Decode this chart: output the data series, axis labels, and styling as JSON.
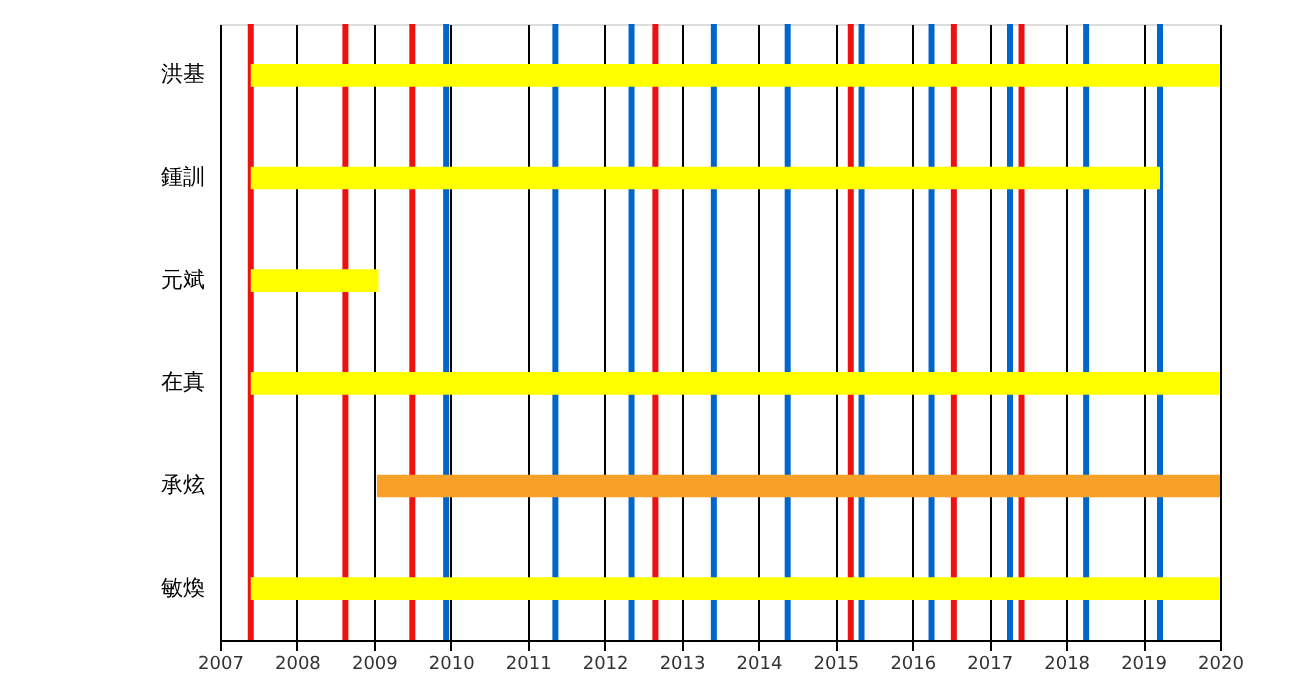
{
  "chart_data": {
    "type": "bar",
    "orientation": "horizontal",
    "categories": [
      "洪基",
      "鍾訓",
      "元斌",
      "在真",
      "承炫",
      "敏煥"
    ],
    "base": [
      2007.4,
      2007.4,
      2007.4,
      2007.4,
      2009.04,
      2007.4
    ],
    "values": [
      12.6,
      11.82,
      1.66,
      12.6,
      10.96,
      12.6
    ],
    "colors": [
      "#ffff00",
      "#ffff00",
      "#ffff00",
      "#ffff00",
      "#f7a128",
      "#ffff00"
    ],
    "xlim": [
      2007,
      2020
    ],
    "xticks": [
      2007,
      2008,
      2009,
      2010,
      2011,
      2012,
      2013,
      2014,
      2015,
      2016,
      2017,
      2018,
      2019,
      2020
    ],
    "grid": "x",
    "legend": false,
    "ref_lines": [
      {
        "axis": "x",
        "value": 2007.4,
        "color": "#ee1111"
      },
      {
        "axis": "x",
        "value": 2008.63,
        "color": "#ee1111"
      },
      {
        "axis": "x",
        "value": 2009.5,
        "color": "#ee1111"
      },
      {
        "axis": "x",
        "value": 2009.94,
        "color": "#0066cc"
      },
      {
        "axis": "x",
        "value": 2011.36,
        "color": "#0066cc"
      },
      {
        "axis": "x",
        "value": 2012.35,
        "color": "#0066cc"
      },
      {
        "axis": "x",
        "value": 2012.66,
        "color": "#ee1111"
      },
      {
        "axis": "x",
        "value": 2013.42,
        "color": "#0066cc"
      },
      {
        "axis": "x",
        "value": 2014.38,
        "color": "#0066cc"
      },
      {
        "axis": "x",
        "value": 2015.2,
        "color": "#ee1111"
      },
      {
        "axis": "x",
        "value": 2015.34,
        "color": "#0066cc"
      },
      {
        "axis": "x",
        "value": 2016.25,
        "color": "#0066cc"
      },
      {
        "axis": "x",
        "value": 2016.54,
        "color": "#ee1111"
      },
      {
        "axis": "x",
        "value": 2017.27,
        "color": "#0066cc"
      },
      {
        "axis": "x",
        "value": 2017.42,
        "color": "#ee1111"
      },
      {
        "axis": "x",
        "value": 2018.26,
        "color": "#0066cc"
      },
      {
        "axis": "x",
        "value": 2019.22,
        "color": "#0066cc"
      }
    ]
  }
}
